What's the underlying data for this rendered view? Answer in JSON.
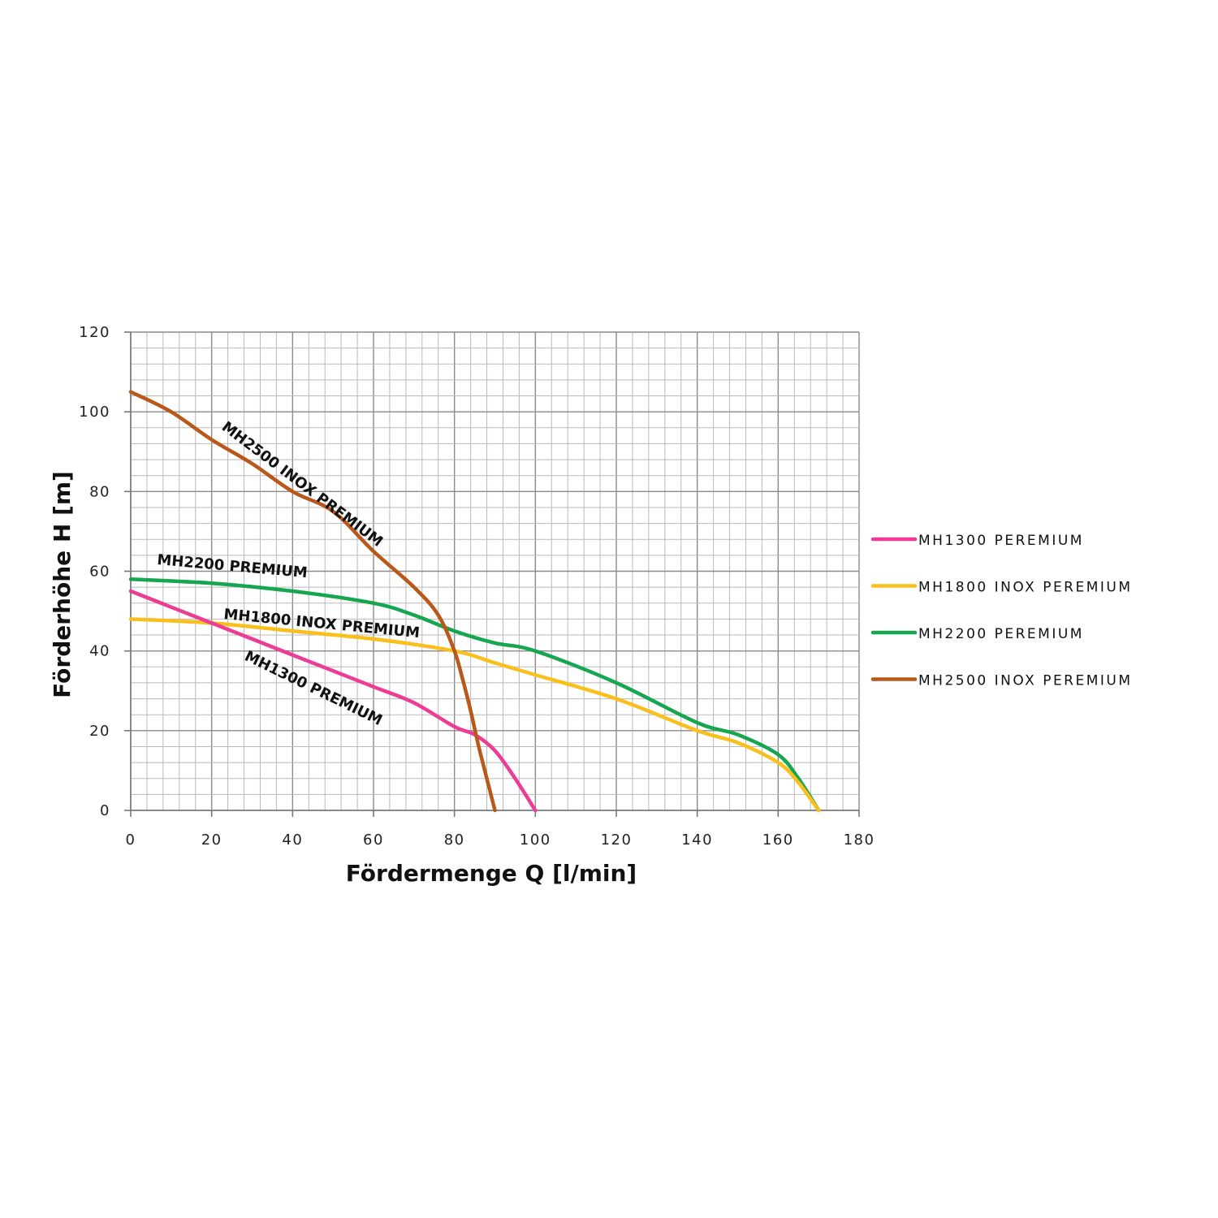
{
  "chart_data": {
    "type": "line",
    "xlabel": "Fördermenge Q [l/min]",
    "ylabel": "Förderhöhe H [m]",
    "xlim": [
      0,
      180
    ],
    "ylim": [
      0,
      120
    ],
    "x_ticks": [
      "0",
      "20",
      "40",
      "60",
      "80",
      "100",
      "120",
      "140",
      "160",
      "180"
    ],
    "y_ticks": [
      "0",
      "20",
      "40",
      "60",
      "80",
      "100",
      "120"
    ],
    "grid": true,
    "legend_position": "right",
    "series": [
      {
        "name": "MH1300 PEREMIUM",
        "label": "MH1300 PREMIUM",
        "color": "#ec3c95",
        "points": [
          [
            0,
            55
          ],
          [
            10,
            51
          ],
          [
            20,
            47
          ],
          [
            30,
            43
          ],
          [
            40,
            39
          ],
          [
            50,
            35
          ],
          [
            60,
            31
          ],
          [
            70,
            27
          ],
          [
            80,
            21
          ],
          [
            85,
            19
          ],
          [
            90,
            15
          ],
          [
            95,
            8
          ],
          [
            100,
            0
          ]
        ]
      },
      {
        "name": "MH1800 INOX PEREMIUM",
        "label": "MH1800 INOX PREMIUM",
        "color": "#f9bf1c",
        "points": [
          [
            0,
            48
          ],
          [
            20,
            47
          ],
          [
            40,
            45
          ],
          [
            60,
            43
          ],
          [
            80,
            40
          ],
          [
            90,
            37
          ],
          [
            100,
            34
          ],
          [
            120,
            28
          ],
          [
            140,
            20
          ],
          [
            150,
            17
          ],
          [
            160,
            12
          ],
          [
            165,
            7
          ],
          [
            170,
            0
          ]
        ]
      },
      {
        "name": "MH2200 PEREMIUM",
        "label": "MH2200 PREMIUM",
        "color": "#17a650",
        "points": [
          [
            0,
            58
          ],
          [
            20,
            57
          ],
          [
            40,
            55
          ],
          [
            60,
            52
          ],
          [
            70,
            49
          ],
          [
            80,
            45
          ],
          [
            90,
            42
          ],
          [
            100,
            40
          ],
          [
            120,
            32
          ],
          [
            140,
            22
          ],
          [
            150,
            19
          ],
          [
            160,
            14
          ],
          [
            165,
            8
          ],
          [
            170,
            0
          ]
        ]
      },
      {
        "name": "MH2500 INOX PEREMIUM",
        "label": "MH2500 INOX PREMIUM",
        "color": "#b9581a",
        "points": [
          [
            0,
            105
          ],
          [
            10,
            100
          ],
          [
            20,
            93
          ],
          [
            30,
            87
          ],
          [
            40,
            80
          ],
          [
            50,
            75
          ],
          [
            60,
            65
          ],
          [
            70,
            56
          ],
          [
            76,
            49
          ],
          [
            80,
            40
          ],
          [
            82,
            33
          ],
          [
            84,
            25
          ],
          [
            86,
            16
          ],
          [
            88,
            8
          ],
          [
            90,
            0
          ]
        ]
      }
    ]
  }
}
